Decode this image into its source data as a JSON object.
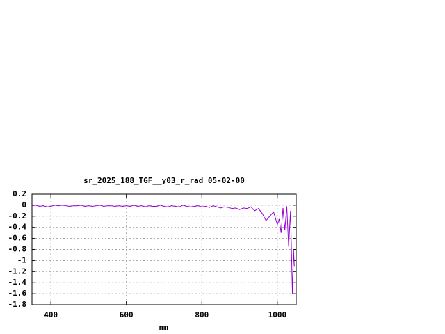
{
  "chart_data": {
    "type": "line",
    "title": "sr_2025_188_TGF__y03_r_rad 05-02-00",
    "x_label": "nm",
    "x": [
      350,
      360,
      370,
      380,
      390,
      400,
      410,
      420,
      430,
      440,
      450,
      460,
      470,
      480,
      490,
      500,
      510,
      520,
      530,
      540,
      550,
      560,
      570,
      580,
      590,
      600,
      610,
      620,
      630,
      640,
      650,
      660,
      670,
      680,
      690,
      700,
      710,
      720,
      730,
      740,
      750,
      760,
      770,
      780,
      790,
      800,
      810,
      820,
      830,
      840,
      850,
      860,
      870,
      880,
      890,
      900,
      910,
      920,
      930,
      940,
      950,
      960,
      970,
      980,
      990,
      1000,
      1005,
      1010,
      1015,
      1020,
      1025,
      1030,
      1035,
      1040,
      1043,
      1045
    ],
    "series": [
      {
        "name": "sr_2025_188_TGF__y03_r_rad",
        "color": "#9400d3",
        "values": [
          -0.01,
          0,
          -0.02,
          -0.01,
          -0.03,
          -0.02,
          0,
          -0.01,
          0,
          -0.01,
          -0.02,
          -0.01,
          -0.01,
          0,
          -0.02,
          -0.01,
          -0.02,
          -0.01,
          0,
          -0.02,
          -0.01,
          -0.01,
          -0.02,
          -0.01,
          -0.02,
          -0.01,
          -0.02,
          0,
          -0.02,
          -0.01,
          -0.03,
          -0.01,
          -0.02,
          -0.02,
          0,
          -0.02,
          -0.03,
          -0.01,
          -0.02,
          -0.03,
          0,
          -0.02,
          -0.03,
          -0.02,
          -0.01,
          -0.03,
          -0.02,
          -0.04,
          -0.01,
          -0.03,
          -0.05,
          -0.03,
          -0.04,
          -0.06,
          -0.05,
          -0.08,
          -0.05,
          -0.06,
          -0.03,
          -0.1,
          -0.06,
          -0.15,
          -0.28,
          -0.2,
          -0.12,
          -0.35,
          -0.25,
          -0.5,
          -0.05,
          -0.45,
          -0.02,
          -0.75,
          -0.1,
          -1.6,
          -0.8,
          -1.1
        ]
      }
    ],
    "xlim": [
      350,
      1050
    ],
    "xticks": [
      400,
      600,
      800,
      1000
    ],
    "ylim": [
      -1.8,
      0.2
    ],
    "yticks": [
      0.2,
      0,
      -0.2,
      -0.4,
      -0.6,
      -0.8,
      -1,
      -1.2,
      -1.4,
      -1.6,
      -1.8
    ],
    "grid": true
  }
}
